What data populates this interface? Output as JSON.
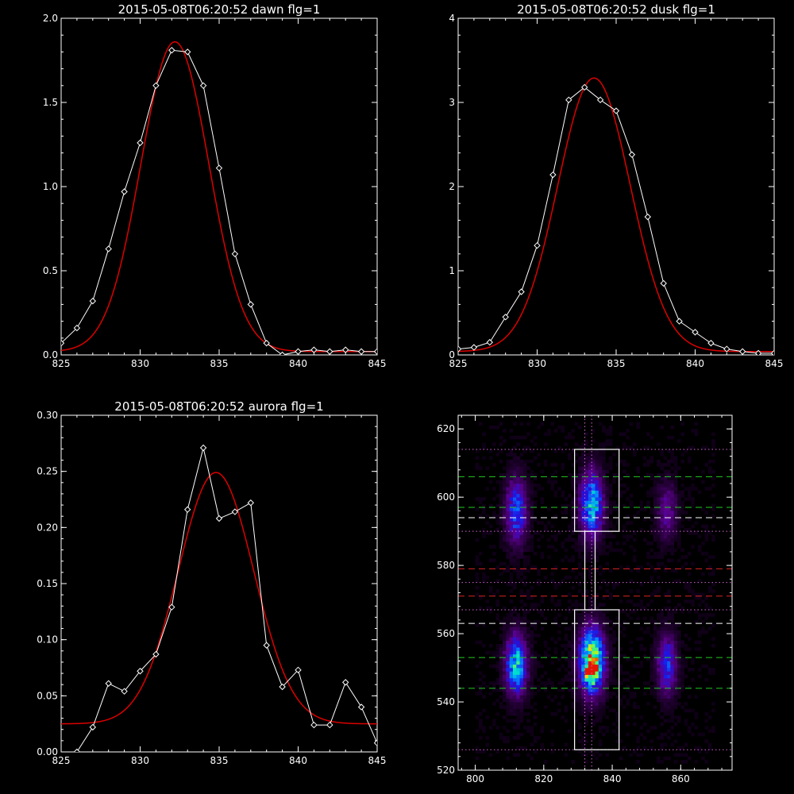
{
  "colors": {
    "background": "#000000",
    "axes": "#ffffff",
    "data": "#ffffff",
    "fit": "#dd0000",
    "green_line": "#22cc22",
    "red_line": "#dd2222",
    "white_line": "#ffffff",
    "magenta_line": "#cc66cc"
  },
  "chart_data": [
    {
      "id": "dawn",
      "type": "line",
      "title": "2015-05-08T06:20:52 dawn flg=1",
      "xlim": [
        825,
        845
      ],
      "ylim": [
        0,
        2.0
      ],
      "xticks": [
        825,
        830,
        835,
        840,
        845
      ],
      "xtick_labels": [
        "825",
        "830",
        "835",
        "840",
        "845"
      ],
      "yticks": [
        0,
        0.5,
        1.0,
        1.5,
        2.0
      ],
      "ytick_labels": [
        "0.0",
        "0.5",
        "1.0",
        "1.5",
        "2.0"
      ],
      "series": [
        {
          "kind": "data",
          "marker": "diamond",
          "x": [
            825,
            826,
            827,
            828,
            829,
            830,
            831,
            832,
            833,
            834,
            835,
            836,
            837,
            838,
            839,
            840,
            841,
            842,
            843,
            844,
            845
          ],
          "y": [
            0.07,
            0.16,
            0.32,
            0.63,
            0.97,
            1.26,
            1.6,
            1.81,
            1.8,
            1.6,
            1.11,
            0.6,
            0.3,
            0.07,
            0.0,
            0.02,
            0.03,
            0.02,
            0.03,
            0.02,
            0.02
          ]
        },
        {
          "kind": "fit",
          "gauss": {
            "amp": 1.84,
            "center": 832.2,
            "sigma": 2.15,
            "base": 0.02
          }
        }
      ]
    },
    {
      "id": "dusk",
      "type": "line",
      "title": "2015-05-08T06:20:52 dusk flg=1",
      "xlim": [
        825,
        845
      ],
      "ylim": [
        0,
        4
      ],
      "xticks": [
        825,
        830,
        835,
        840,
        845
      ],
      "xtick_labels": [
        "825",
        "830",
        "835",
        "840",
        "845"
      ],
      "yticks": [
        0,
        1,
        2,
        3,
        4
      ],
      "ytick_labels": [
        "0",
        "1",
        "2",
        "3",
        "4"
      ],
      "series": [
        {
          "kind": "data",
          "marker": "diamond",
          "x": [
            825,
            826,
            827,
            828,
            829,
            830,
            831,
            832,
            833,
            834,
            835,
            836,
            837,
            838,
            839,
            840,
            841,
            842,
            843,
            844,
            845
          ],
          "y": [
            0.07,
            0.09,
            0.15,
            0.45,
            0.75,
            1.3,
            2.14,
            3.03,
            3.18,
            3.03,
            2.9,
            2.38,
            1.64,
            0.85,
            0.4,
            0.27,
            0.14,
            0.07,
            0.04,
            0.02,
            0.02
          ]
        },
        {
          "kind": "fit",
          "gauss": {
            "amp": 3.25,
            "center": 833.6,
            "sigma": 2.3,
            "base": 0.04
          }
        }
      ]
    },
    {
      "id": "aurora",
      "type": "line",
      "title": "2015-05-08T06:20:52 aurora flg=1",
      "xlim": [
        825,
        845
      ],
      "ylim": [
        0,
        0.3
      ],
      "xticks": [
        825,
        830,
        835,
        840,
        845
      ],
      "xtick_labels": [
        "825",
        "830",
        "835",
        "840",
        "845"
      ],
      "yticks": [
        0,
        0.05,
        0.1,
        0.15,
        0.2,
        0.25,
        0.3
      ],
      "ytick_labels": [
        "0.00",
        "0.05",
        "0.10",
        "0.15",
        "0.20",
        "0.25",
        "0.30"
      ],
      "series": [
        {
          "kind": "data",
          "marker": "diamond",
          "x": [
            826,
            827,
            828,
            829,
            830,
            831,
            832,
            833,
            834,
            835,
            836,
            837,
            838,
            839,
            840,
            841,
            842,
            843,
            844,
            845
          ],
          "y": [
            0.0,
            0.022,
            0.061,
            0.054,
            0.072,
            0.087,
            0.129,
            0.216,
            0.271,
            0.208,
            0.214,
            0.222,
            0.095,
            0.058,
            0.073,
            0.024,
            0.024,
            0.062,
            0.04,
            0.008
          ]
        },
        {
          "kind": "fit",
          "gauss": {
            "amp": 0.224,
            "center": 834.8,
            "sigma": 2.4,
            "base": 0.025
          }
        }
      ]
    },
    {
      "id": "image",
      "type": "heatmap",
      "title": "",
      "xlim": [
        795,
        875
      ],
      "ylim": [
        520,
        624
      ],
      "xticks": [
        800,
        820,
        840,
        860
      ],
      "xtick_labels": [
        "800",
        "820",
        "840",
        "860"
      ],
      "yticks": [
        520,
        540,
        560,
        580,
        600,
        620
      ],
      "ytick_labels": [
        "520",
        "540",
        "560",
        "580",
        "600",
        "620"
      ],
      "blobs": [
        {
          "x": 812,
          "y": 596,
          "sx": 2.2,
          "sy": 6.5,
          "amp": 0.45
        },
        {
          "x": 812,
          "y": 551,
          "sx": 2.2,
          "sy": 6.0,
          "amp": 0.62
        },
        {
          "x": 834,
          "y": 598,
          "sx": 2.3,
          "sy": 6.5,
          "amp": 0.62
        },
        {
          "x": 834,
          "y": 552,
          "sx": 2.5,
          "sy": 6.5,
          "amp": 0.88
        },
        {
          "x": 834,
          "y": 549,
          "sx": 1.2,
          "sy": 2.0,
          "amp": 0.35
        },
        {
          "x": 856,
          "y": 596,
          "sx": 2.0,
          "sy": 6.0,
          "amp": 0.25
        },
        {
          "x": 856,
          "y": 551,
          "sx": 2.0,
          "sy": 6.0,
          "amp": 0.42
        }
      ],
      "hlines": [
        {
          "y": 614,
          "color": "magenta",
          "style": "dotted"
        },
        {
          "y": 606,
          "color": "green",
          "style": "dashed"
        },
        {
          "y": 597,
          "color": "green",
          "style": "dashed"
        },
        {
          "y": 594,
          "color": "white",
          "style": "dashed"
        },
        {
          "y": 590,
          "color": "magenta",
          "style": "dotted"
        },
        {
          "y": 579,
          "color": "red",
          "style": "dashed"
        },
        {
          "y": 575,
          "color": "magenta",
          "style": "dotted"
        },
        {
          "y": 571,
          "color": "red",
          "style": "dashed"
        },
        {
          "y": 567,
          "color": "magenta",
          "style": "dotted"
        },
        {
          "y": 563,
          "color": "white",
          "style": "dashed"
        },
        {
          "y": 553,
          "color": "green",
          "style": "dashed"
        },
        {
          "y": 544,
          "color": "green",
          "style": "dashed"
        },
        {
          "y": 526,
          "color": "magenta",
          "style": "dotted"
        }
      ],
      "vlines": [
        {
          "x": 832,
          "color": "magenta",
          "style": "dotted"
        },
        {
          "x": 834,
          "color": "magenta",
          "style": "dotted"
        }
      ],
      "boxes": [
        {
          "x0": 829,
          "x1": 842,
          "y0": 590,
          "y1": 614
        },
        {
          "x0": 832,
          "x1": 835,
          "y0": 567,
          "y1": 590
        },
        {
          "x0": 829,
          "x1": 842,
          "y0": 526,
          "y1": 567
        }
      ]
    }
  ]
}
